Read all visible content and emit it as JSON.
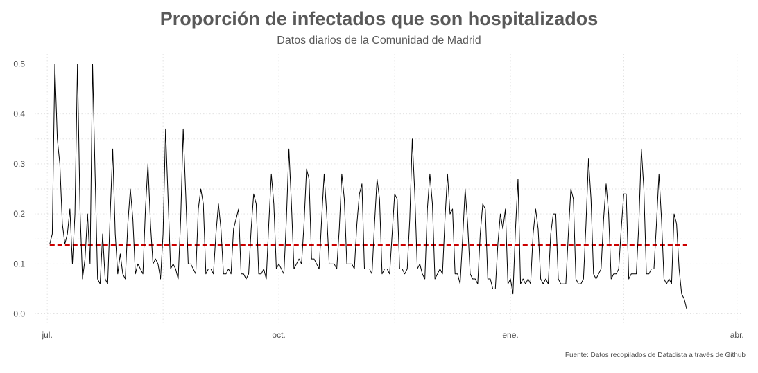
{
  "chart_data": {
    "type": "line",
    "title": "Proporción de infectados que son hospitalizados",
    "subtitle": "Datos diarios de la Comunidad de Madrid",
    "caption": "Fuente: Datos recopilados de Datadista a través de Github",
    "xlabel": "",
    "ylabel": "",
    "x_range": [
      "2020-06-26",
      "2021-04-03"
    ],
    "x_ticks": [
      {
        "date": "2020-07-01",
        "label": "jul."
      },
      {
        "date": "2020-10-01",
        "label": "oct."
      },
      {
        "date": "2021-01-01",
        "label": "ene."
      },
      {
        "date": "2021-04-01",
        "label": "abr."
      }
    ],
    "ylim": [
      -0.02,
      0.52
    ],
    "y_ticks": [
      0.0,
      0.1,
      0.2,
      0.3,
      0.4,
      0.5
    ],
    "y_tick_labels": [
      "0.0",
      "0.1",
      "0.2",
      "0.3",
      "0.4",
      "0.5"
    ],
    "grid": true,
    "reference_line": {
      "y": 0.138,
      "color": "#cc0000",
      "style": "dashed"
    },
    "series": [
      {
        "color": "#000000",
        "start_date": "2020-07-02",
        "values": [
          0.14,
          0.16,
          0.5,
          0.35,
          0.3,
          0.18,
          0.14,
          0.16,
          0.21,
          0.1,
          0.2,
          0.5,
          0.21,
          0.07,
          0.11,
          0.2,
          0.1,
          0.5,
          0.28,
          0.07,
          0.06,
          0.16,
          0.07,
          0.06,
          0.2,
          0.33,
          0.16,
          0.08,
          0.12,
          0.08,
          0.07,
          0.18,
          0.25,
          0.19,
          0.08,
          0.1,
          0.09,
          0.08,
          0.21,
          0.3,
          0.18,
          0.1,
          0.11,
          0.1,
          0.07,
          0.16,
          0.37,
          0.23,
          0.09,
          0.1,
          0.09,
          0.07,
          0.19,
          0.37,
          0.24,
          0.1,
          0.1,
          0.09,
          0.08,
          0.21,
          0.25,
          0.22,
          0.08,
          0.09,
          0.09,
          0.08,
          0.16,
          0.22,
          0.17,
          0.08,
          0.08,
          0.09,
          0.08,
          0.17,
          0.19,
          0.21,
          0.08,
          0.08,
          0.07,
          0.08,
          0.17,
          0.24,
          0.22,
          0.08,
          0.08,
          0.09,
          0.07,
          0.18,
          0.28,
          0.22,
          0.09,
          0.1,
          0.09,
          0.08,
          0.19,
          0.33,
          0.22,
          0.09,
          0.1,
          0.11,
          0.1,
          0.18,
          0.29,
          0.27,
          0.11,
          0.11,
          0.1,
          0.09,
          0.19,
          0.28,
          0.2,
          0.1,
          0.1,
          0.1,
          0.09,
          0.17,
          0.28,
          0.23,
          0.1,
          0.1,
          0.1,
          0.09,
          0.18,
          0.24,
          0.26,
          0.09,
          0.09,
          0.09,
          0.08,
          0.18,
          0.27,
          0.23,
          0.08,
          0.09,
          0.09,
          0.08,
          0.16,
          0.24,
          0.23,
          0.09,
          0.09,
          0.08,
          0.09,
          0.19,
          0.35,
          0.24,
          0.09,
          0.1,
          0.08,
          0.07,
          0.21,
          0.28,
          0.22,
          0.07,
          0.08,
          0.09,
          0.08,
          0.19,
          0.28,
          0.2,
          0.21,
          0.08,
          0.08,
          0.06,
          0.15,
          0.25,
          0.18,
          0.08,
          0.07,
          0.07,
          0.06,
          0.16,
          0.22,
          0.21,
          0.07,
          0.07,
          0.05,
          0.05,
          0.14,
          0.2,
          0.17,
          0.21,
          0.06,
          0.07,
          0.04,
          0.17,
          0.27,
          0.06,
          0.07,
          0.06,
          0.07,
          0.06,
          0.16,
          0.21,
          0.17,
          0.07,
          0.06,
          0.07,
          0.06,
          0.16,
          0.2,
          0.2,
          0.07,
          0.06,
          0.06,
          0.06,
          0.16,
          0.25,
          0.23,
          0.07,
          0.06,
          0.06,
          0.07,
          0.18,
          0.31,
          0.23,
          0.08,
          0.07,
          0.08,
          0.09,
          0.19,
          0.26,
          0.2,
          0.07,
          0.08,
          0.08,
          0.09,
          0.17,
          0.24,
          0.24,
          0.07,
          0.08,
          0.08,
          0.08,
          0.18,
          0.33,
          0.25,
          0.08,
          0.08,
          0.09,
          0.09,
          0.18,
          0.28,
          0.19,
          0.07,
          0.06,
          0.07,
          0.06,
          0.2,
          0.18,
          0.09,
          0.04,
          0.03,
          0.01
        ]
      }
    ]
  }
}
